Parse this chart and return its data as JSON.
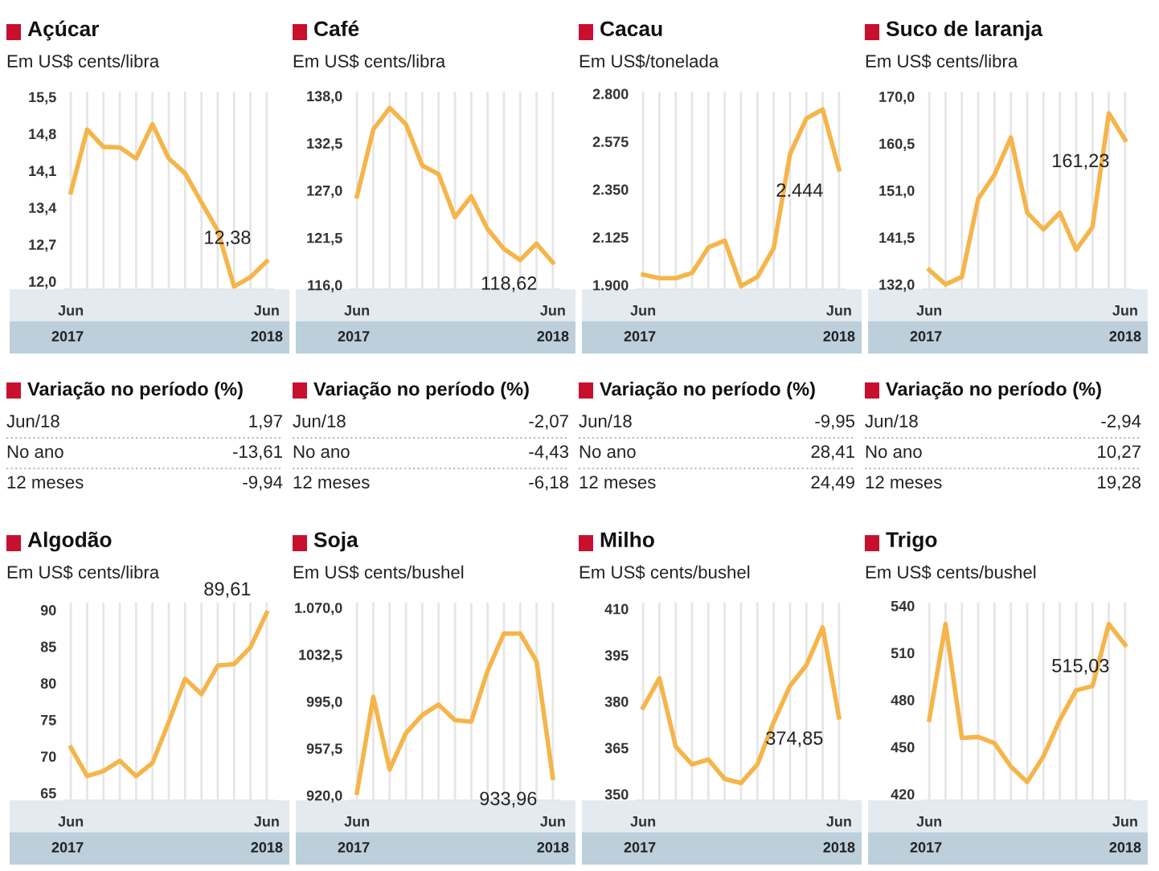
{
  "chart_data": [
    {
      "type": "line",
      "title": "Açúcar",
      "subtitle": "Em US$ cents/libra",
      "categories": [
        "Jun",
        null,
        null,
        null,
        null,
        null,
        null,
        null,
        null,
        null,
        null,
        null,
        "Jun"
      ],
      "ylim": [
        11.85,
        15.6
      ],
      "yticks": [
        {
          "value": 15.5,
          "label": "15,5"
        },
        {
          "value": 14.8,
          "label": "14,8"
        },
        {
          "value": 14.1,
          "label": "14,1"
        },
        {
          "value": 13.4,
          "label": "13,4"
        },
        {
          "value": 12.7,
          "label": "12,7"
        },
        {
          "value": 12.0,
          "label": "12,0"
        }
      ],
      "grid": "x",
      "annotations": [
        "2017",
        "2018"
      ],
      "series": [
        {
          "color": "#f5b54a",
          "values": [
            13.69,
            14.88,
            14.55,
            14.54,
            14.33,
            14.98,
            14.33,
            14.05,
            13.5,
            12.96,
            11.9,
            12.08,
            12.38
          ],
          "value_labels": [
            null,
            null,
            null,
            null,
            null,
            null,
            null,
            null,
            null,
            null,
            null,
            null,
            "12,38"
          ]
        }
      ]
    },
    {
      "type": "line",
      "title": "Café",
      "subtitle": "Em US$ cents/libra",
      "categories": [
        "Jun",
        null,
        null,
        null,
        null,
        null,
        null,
        null,
        null,
        null,
        null,
        null,
        "Jun"
      ],
      "ylim": [
        115.5,
        138.5
      ],
      "yticks": [
        {
          "value": 138.0,
          "label": "138,0"
        },
        {
          "value": 132.5,
          "label": "132,5"
        },
        {
          "value": 127.0,
          "label": "127,0"
        },
        {
          "value": 121.5,
          "label": "121,5"
        },
        {
          "value": 116.0,
          "label": "116,0"
        }
      ],
      "grid": "x",
      "annotations": [
        "2017",
        "2018"
      ],
      "series": [
        {
          "color": "#f5b54a",
          "values": [
            126.3,
            134.1,
            136.6,
            134.7,
            129.9,
            128.9,
            123.9,
            126.3,
            122.5,
            120.2,
            118.9,
            120.8,
            118.62
          ],
          "value_labels": [
            null,
            null,
            null,
            null,
            null,
            null,
            null,
            null,
            null,
            null,
            null,
            null,
            "118,62"
          ]
        }
      ]
    },
    {
      "type": "line",
      "title": "Cacau",
      "subtitle": "Em US$/tonelada",
      "categories": [
        "Jun",
        null,
        null,
        null,
        null,
        null,
        null,
        null,
        null,
        null,
        null,
        null,
        "Jun"
      ],
      "ylim": [
        1880,
        2810
      ],
      "yticks": [
        {
          "value": 2800,
          "label": "2.800"
        },
        {
          "value": 2575,
          "label": "2.575"
        },
        {
          "value": 2350,
          "label": "2.350"
        },
        {
          "value": 2125,
          "label": "2.125"
        },
        {
          "value": 1900,
          "label": "1.900"
        }
      ],
      "grid": "x",
      "annotations": [
        "2017",
        "2018"
      ],
      "series": [
        {
          "color": "#f5b54a",
          "values": [
            1949,
            1932,
            1932,
            1957,
            2077,
            2109,
            1895,
            1938,
            2073,
            2516,
            2684,
            2726,
            2444
          ],
          "value_labels": [
            null,
            null,
            null,
            null,
            null,
            null,
            null,
            null,
            null,
            null,
            null,
            null,
            "2.444"
          ]
        }
      ]
    },
    {
      "type": "line",
      "title": "Suco de laranja",
      "subtitle": "Em US$ cents/libra",
      "categories": [
        "Jun",
        null,
        null,
        null,
        null,
        null,
        null,
        null,
        null,
        null,
        null,
        null,
        "Jun"
      ],
      "ylim": [
        131,
        171
      ],
      "yticks": [
        {
          "value": 170.0,
          "label": "170,0"
        },
        {
          "value": 160.5,
          "label": "160,5"
        },
        {
          "value": 151.0,
          "label": "151,0"
        },
        {
          "value": 141.5,
          "label": "141,5"
        },
        {
          "value": 132.0,
          "label": "132,0"
        }
      ],
      "grid": "x",
      "annotations": [
        "2017",
        "2018"
      ],
      "series": [
        {
          "color": "#f5b54a",
          "values": [
            134.9,
            132.0,
            133.5,
            149.3,
            154.2,
            161.7,
            146.5,
            143.1,
            146.5,
            139.0,
            143.6,
            166.6,
            161.23
          ],
          "value_labels": [
            null,
            null,
            null,
            null,
            null,
            null,
            null,
            null,
            null,
            null,
            null,
            null,
            "161,23"
          ]
        }
      ]
    },
    {
      "type": "other",
      "title": "Variação no período (%)",
      "categories": [
        "Jun/18",
        "No ano",
        "12 meses"
      ],
      "value_labels": [
        "1,97",
        "-13,61",
        "-9,94"
      ]
    },
    {
      "type": "other",
      "title": "Variação no período (%)",
      "categories": [
        "Jun/18",
        "No ano",
        "12 meses"
      ],
      "value_labels": [
        "-2,07",
        "-4,43",
        "-6,18"
      ]
    },
    {
      "type": "other",
      "title": "Variação no período (%)",
      "categories": [
        "Jun/18",
        "No ano",
        "12 meses"
      ],
      "value_labels": [
        "-9,95",
        "28,41",
        "24,49"
      ]
    },
    {
      "type": "other",
      "title": "Variação no período (%)",
      "categories": [
        "Jun/18",
        "No ano",
        "12 meses"
      ],
      "value_labels": [
        "-2,94",
        "10,27",
        "19,28"
      ]
    },
    {
      "type": "line",
      "title": "Algodão",
      "subtitle": "Em US$ cents/libra",
      "categories": [
        "Jun",
        null,
        null,
        null,
        null,
        null,
        null,
        null,
        null,
        null,
        null,
        null,
        "Jun"
      ],
      "ylim": [
        64,
        91
      ],
      "yticks": [
        90,
        85,
        80,
        75,
        70,
        65
      ],
      "grid": "x",
      "annotations": [
        "2017",
        "2018"
      ],
      "series": [
        {
          "color": "#f5b54a",
          "values": [
            71.2,
            67.3,
            68.0,
            69.4,
            67.3,
            69.1,
            74.7,
            80.6,
            78.5,
            82.4,
            82.6,
            84.9,
            89.61
          ],
          "value_labels": [
            null,
            null,
            null,
            null,
            null,
            null,
            null,
            null,
            null,
            null,
            null,
            null,
            "89,61"
          ]
        }
      ]
    },
    {
      "type": "line",
      "title": "Soja",
      "subtitle": "Em US$ cents/bushel",
      "categories": [
        "Jun",
        null,
        null,
        null,
        null,
        null,
        null,
        null,
        null,
        null,
        null,
        null,
        "Jun"
      ],
      "ylim": [
        916,
        1074
      ],
      "yticks": [
        {
          "value": 1070.0,
          "label": "1.070,0"
        },
        {
          "value": 1032.5,
          "label": "1032,5"
        },
        {
          "value": 995.0,
          "label": "995,0"
        },
        {
          "value": 957.5,
          "label": "957,5"
        },
        {
          "value": 920.0,
          "label": "920,0"
        }
      ],
      "grid": "x",
      "annotations": [
        "2017",
        "2018"
      ],
      "series": [
        {
          "color": "#f5b54a",
          "values": [
            922,
            998.7,
            940.7,
            969.7,
            984.2,
            992.5,
            980,
            978.8,
            1019.4,
            1049.3,
            1049.3,
            1026.9,
            933.96
          ],
          "value_labels": [
            null,
            null,
            null,
            null,
            null,
            null,
            null,
            null,
            null,
            null,
            null,
            null,
            "933,96"
          ]
        }
      ]
    },
    {
      "type": "line",
      "title": "Milho",
      "subtitle": "Em US$ cents/bushel",
      "categories": [
        "Jun",
        null,
        null,
        null,
        null,
        null,
        null,
        null,
        null,
        null,
        null,
        null,
        "Jun"
      ],
      "ylim": [
        348,
        412
      ],
      "yticks": [
        410,
        395,
        380,
        365,
        350
      ],
      "grid": "x",
      "annotations": [
        "2017",
        "2018"
      ],
      "series": [
        {
          "color": "#f5b54a",
          "values": [
            378,
            387.5,
            365.4,
            359.6,
            361.2,
            354.9,
            353.6,
            359.6,
            373.3,
            385.1,
            391.7,
            404.0,
            374.85
          ],
          "value_labels": [
            null,
            null,
            null,
            null,
            null,
            null,
            null,
            null,
            null,
            null,
            null,
            null,
            "374,85"
          ]
        }
      ]
    },
    {
      "type": "line",
      "title": "Trigo",
      "subtitle": "Em US$ cents/bushel",
      "categories": [
        "Jun",
        null,
        null,
        null,
        null,
        null,
        null,
        null,
        null,
        null,
        null,
        null,
        "Jun"
      ],
      "ylim": [
        416,
        542
      ],
      "yticks": [
        540,
        510,
        480,
        450,
        420
      ],
      "grid": "x",
      "annotations": [
        "2017",
        "2018"
      ],
      "series": [
        {
          "color": "#f5b54a",
          "values": [
            467.3,
            528.4,
            455.7,
            456.4,
            452.4,
            437.5,
            427.6,
            444.1,
            467.3,
            486.1,
            488.8,
            528.4,
            515.03
          ],
          "value_labels": [
            null,
            null,
            null,
            null,
            null,
            null,
            null,
            null,
            null,
            null,
            null,
            null,
            "515,03"
          ]
        }
      ]
    }
  ]
}
